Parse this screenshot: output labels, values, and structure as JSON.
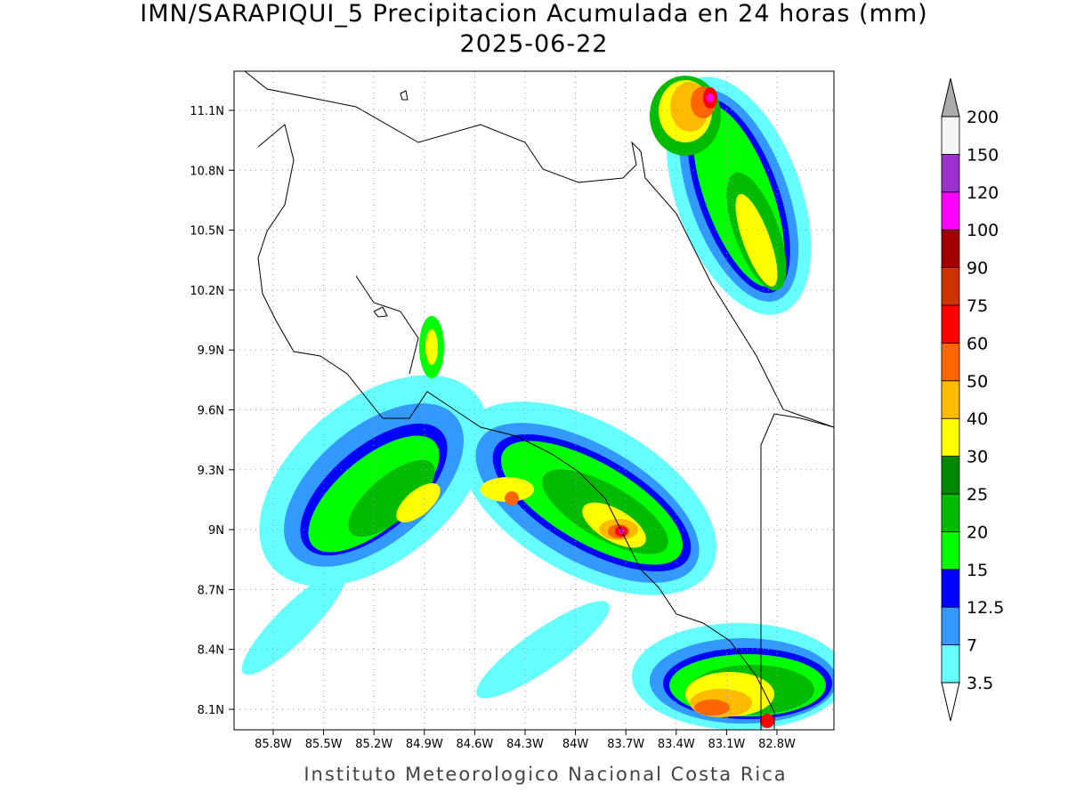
{
  "map": {
    "title": "IMN/SARAPIQUI_5 Precipitacion Acumulada en 24 horas (mm)",
    "subtitle": "2025-06-22",
    "lon_ticks": [
      "85.8W",
      "85.5W",
      "85.2W",
      "84.9W",
      "84.6W",
      "84.3W",
      "84W",
      "83.7W",
      "83.4W",
      "83.1W",
      "82.8W"
    ],
    "lat_ticks": [
      "11.1N",
      "10.8N",
      "10.5N",
      "10.2N",
      "9.9N",
      "9.6N",
      "9.3N",
      "9N",
      "8.7N",
      "8.4N",
      "8.1N"
    ],
    "colorbar": {
      "levels": [
        3.5,
        7,
        12.5,
        15,
        20,
        25,
        30,
        40,
        50,
        60,
        75,
        90,
        100,
        120,
        150,
        200
      ],
      "colors": [
        "#66ffff",
        "#3399ff",
        "#0000ff",
        "#00ff00",
        "#00bb00",
        "#008800",
        "#ffff00",
        "#ffbb00",
        "#ff6600",
        "#ff0000",
        "#cc3300",
        "#a00000",
        "#ff00ff",
        "#9a33cc",
        "#f5f5f5"
      ]
    },
    "footer": "Instituto Meteorologico Nacional Costa Rica"
  }
}
